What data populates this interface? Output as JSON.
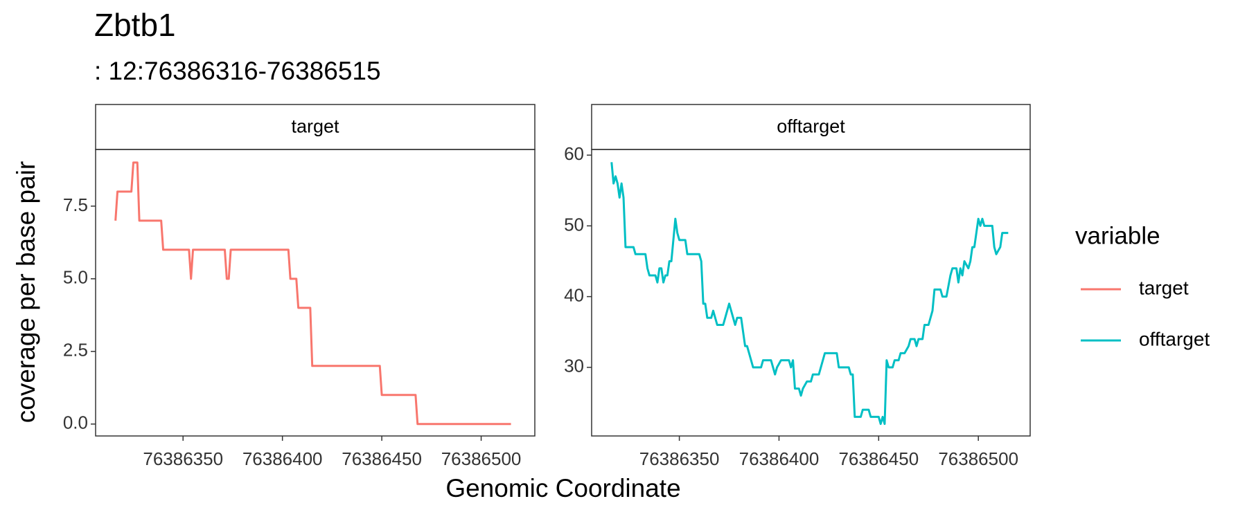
{
  "title": "Zbtb1",
  "subtitle": ": 12:76386316-76386515",
  "x_label": "Genomic Coordinate",
  "y_label": "coverage per base pair",
  "legend_title": "variable",
  "chart_data": [
    {
      "type": "line",
      "panel_title": "target",
      "xlim": [
        76386306,
        76386527
      ],
      "xticks": [
        76386350,
        76386400,
        76386450,
        76386500
      ],
      "ylim": [
        -0.41,
        9.45
      ],
      "yticks": [
        {
          "value": 0,
          "label": "0.0"
        },
        2.5,
        {
          "value": 5,
          "label": "5.0"
        },
        7.5
      ],
      "series": [
        {
          "name": "target",
          "color": "#F8766D",
          "x": [
            76386316,
            76386317,
            76386324,
            76386325,
            76386327,
            76386328,
            76386339,
            76386340,
            76386353,
            76386354,
            76386355,
            76386371,
            76386372,
            76386373,
            76386374,
            76386403,
            76386404,
            76386407,
            76386408,
            76386414,
            76386415,
            76386449,
            76386450,
            76386467,
            76386468,
            76386515
          ],
          "values": [
            7,
            8,
            8,
            9,
            9,
            7,
            7,
            6,
            6,
            5,
            6,
            6,
            5,
            5,
            6,
            6,
            5,
            5,
            4,
            4,
            2,
            2,
            1,
            1,
            0,
            0
          ]
        }
      ]
    },
    {
      "type": "line",
      "panel_title": "offtarget",
      "xlim": [
        76386306,
        76386526
      ],
      "xticks": [
        76386350,
        76386400,
        76386450,
        76386500
      ],
      "ylim": [
        20.3,
        60.8
      ],
      "yticks": [
        30,
        40,
        50,
        60
      ],
      "series": [
        {
          "name": "offtarget",
          "color": "#00BFC4",
          "x": [
            76386316,
            76386317,
            76386318,
            76386319,
            76386320,
            76386321,
            76386322,
            76386323,
            76386327,
            76386328,
            76386333,
            76386334,
            76386335,
            76386338,
            76386339,
            76386340,
            76386341,
            76386342,
            76386343,
            76386344,
            76386345,
            76386346,
            76386348,
            76386349,
            76386350,
            76386353,
            76386354,
            76386360,
            76386361,
            76386362,
            76386363,
            76386364,
            76386366,
            76386367,
            76386369,
            76386372,
            76386373,
            76386375,
            76386376,
            76386378,
            76386379,
            76386381,
            76386382,
            76386383,
            76386384,
            76386385,
            76386387,
            76386391,
            76386392,
            76386396,
            76386397,
            76386398,
            76386399,
            76386401,
            76386405,
            76386406,
            76386407,
            76386408,
            76386410,
            76386411,
            76386412,
            76386414,
            76386416,
            76386417,
            76386420,
            76386421,
            76386423,
            76386429,
            76386430,
            76386435,
            76386436,
            76386437,
            76386438,
            76386441,
            76386442,
            76386445,
            76386446,
            76386450,
            76386451,
            76386452,
            76386453,
            76386454,
            76386455,
            76386457,
            76386458,
            76386460,
            76386461,
            76386463,
            76386465,
            76386466,
            76386468,
            76386469,
            76386470,
            76386472,
            76386473,
            76386475,
            76386477,
            76386478,
            76386481,
            76386482,
            76386484,
            76386486,
            76386487,
            76386489,
            76386490,
            76386491,
            76386492,
            76386493,
            76386495,
            76386496,
            76386497,
            76386498,
            76386500,
            76386501,
            76386502,
            76386503,
            76386507,
            76386508,
            76386509,
            76386511,
            76386512,
            76386515
          ],
          "values": [
            59,
            56,
            57,
            56,
            54,
            56,
            54,
            47,
            47,
            46,
            46,
            44,
            43,
            43,
            42,
            44,
            44,
            42,
            43,
            43,
            45,
            45,
            51,
            49,
            48,
            48,
            46,
            46,
            45,
            39,
            39,
            37,
            37,
            38,
            36,
            36,
            37,
            39,
            38,
            36,
            37,
            37,
            35,
            33,
            33,
            32,
            30,
            30,
            31,
            31,
            30,
            29,
            30,
            31,
            31,
            30,
            31,
            27,
            27,
            26,
            27,
            28,
            28,
            29,
            29,
            30,
            32,
            32,
            30,
            30,
            29,
            29,
            23,
            23,
            24,
            24,
            23,
            23,
            22,
            23,
            22,
            31,
            30,
            30,
            31,
            31,
            32,
            32,
            33,
            34,
            34,
            33,
            34,
            34,
            36,
            36,
            38,
            41,
            41,
            40,
            40,
            43,
            44,
            44,
            42,
            44,
            43,
            45,
            44,
            45,
            47,
            47,
            51,
            50,
            51,
            50,
            50,
            47,
            46,
            47,
            49,
            49
          ]
        }
      ]
    }
  ]
}
